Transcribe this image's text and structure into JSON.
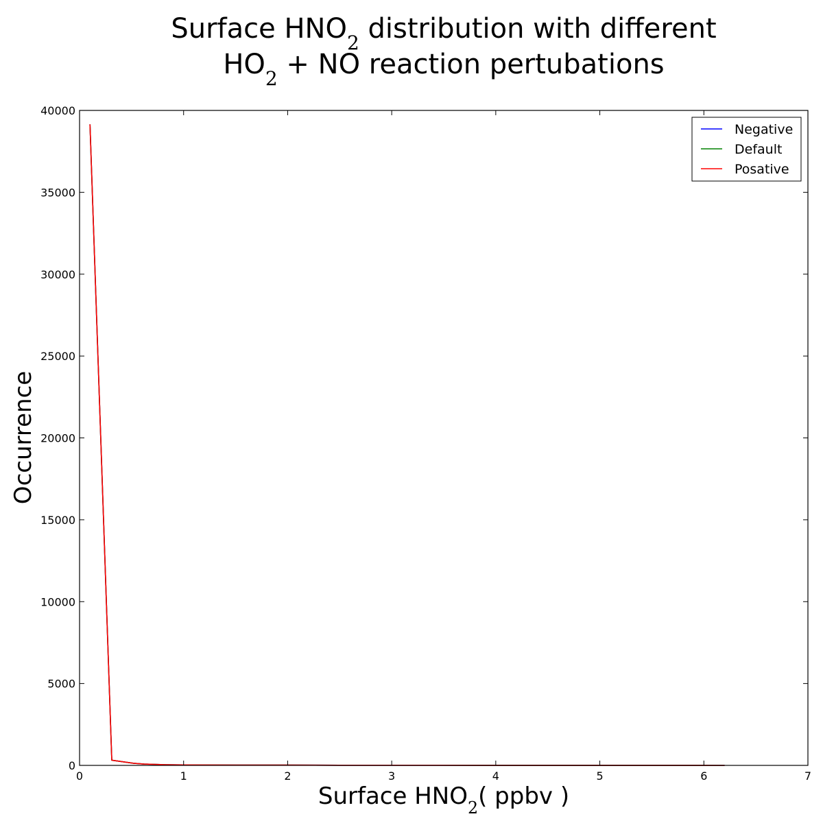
{
  "chart_data": {
    "type": "line",
    "title": "Surface HNO$_2$ distribution with different HO$_2$ + NO reaction pertubations",
    "title_lines": [
      [
        {
          "t": "Surface HNO"
        },
        {
          "sub": "2"
        },
        {
          "t": " distribution with different"
        }
      ],
      [
        {
          "t": "HO"
        },
        {
          "sub": "2"
        },
        {
          "t": " + NO reaction pertubations"
        }
      ]
    ],
    "xlabel": "Surface HNO$_2$( ppbv )",
    "xlabel_parts": [
      {
        "t": "Surface HNO"
      },
      {
        "sub": "2"
      },
      {
        "t": "( ppbv )"
      }
    ],
    "ylabel": "Occurrence",
    "xlim": [
      0,
      7
    ],
    "ylim": [
      0,
      40000
    ],
    "xticks": [
      0,
      1,
      2,
      3,
      4,
      5,
      6,
      7
    ],
    "yticks": [
      0,
      5000,
      10000,
      15000,
      20000,
      25000,
      30000,
      35000,
      40000
    ],
    "grid": false,
    "legend_position": "top-right",
    "series": [
      {
        "name": "Negative",
        "color": "#0000ff",
        "x": [
          0.1,
          0.31,
          0.52,
          0.62,
          0.83,
          1.0,
          1.5,
          2.0,
          2.5,
          3.0,
          4.0,
          5.0,
          6.2
        ],
        "y": [
          39150,
          320,
          130,
          80,
          40,
          30,
          20,
          15,
          10,
          8,
          5,
          3,
          1
        ]
      },
      {
        "name": "Default",
        "color": "#008000",
        "x": [
          0.1,
          0.31,
          0.52,
          0.62,
          0.83,
          1.0,
          1.5,
          2.0,
          2.5,
          3.0,
          4.0,
          5.0,
          6.2
        ],
        "y": [
          39150,
          320,
          130,
          80,
          40,
          30,
          20,
          15,
          10,
          8,
          5,
          3,
          1
        ]
      },
      {
        "name": "Posative",
        "color": "#ff0000",
        "x": [
          0.1,
          0.31,
          0.52,
          0.62,
          0.83,
          1.0,
          1.5,
          2.0,
          2.5,
          3.0,
          4.0,
          5.0,
          6.2
        ],
        "y": [
          39150,
          320,
          130,
          80,
          40,
          30,
          20,
          15,
          10,
          8,
          5,
          3,
          1
        ]
      }
    ]
  }
}
